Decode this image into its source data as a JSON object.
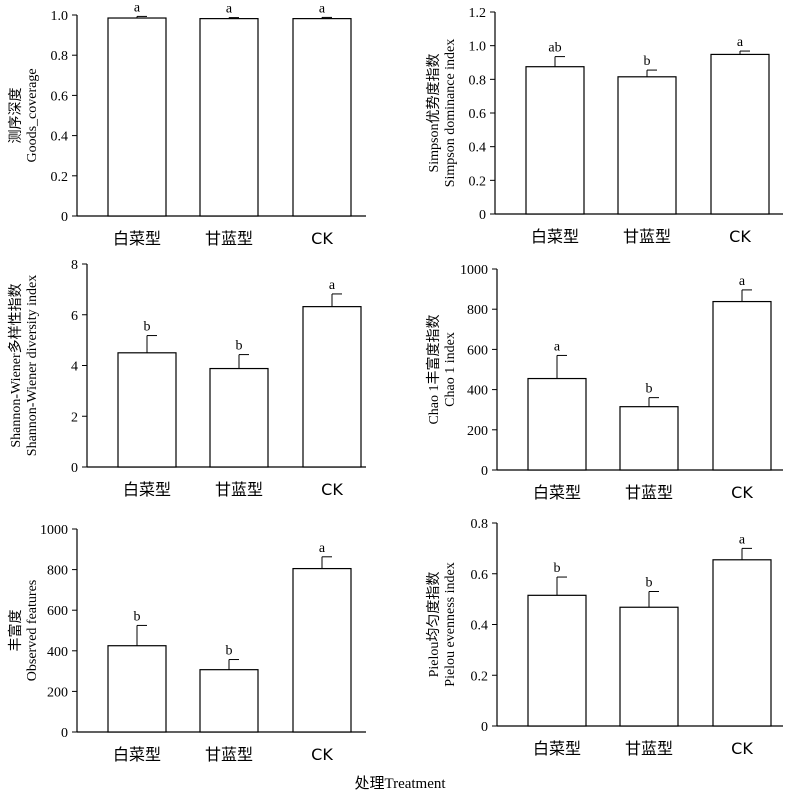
{
  "figure": {
    "xlabel": "处理Treatment"
  },
  "chart_data": [
    {
      "type": "bar",
      "categories": [
        "白菜型",
        "甘蓝型",
        "CK"
      ],
      "values": [
        0.985,
        0.982,
        0.982
      ],
      "errors": [
        0.008,
        0.005,
        0.006
      ],
      "letters": [
        "a",
        "a",
        "a"
      ],
      "ylabel": [
        "测序深度",
        "Goods_coverage"
      ],
      "ylim": [
        0,
        1.0
      ],
      "yticks": [
        0,
        0.2,
        0.4,
        0.6,
        0.8,
        1.0
      ],
      "ytick_labels": [
        "0",
        "0.2",
        "0.4",
        "0.6",
        "0.8",
        "1.0"
      ]
    },
    {
      "type": "bar",
      "categories": [
        "白菜型",
        "甘蓝型",
        "CK"
      ],
      "values": [
        0.875,
        0.815,
        0.948
      ],
      "errors": [
        0.06,
        0.04,
        0.02
      ],
      "letters": [
        "ab",
        "b",
        "a"
      ],
      "ylabel": [
        "Simpson优势度指数",
        "Simpson dominance index"
      ],
      "ylim": [
        0,
        1.2
      ],
      "yticks": [
        0,
        0.2,
        0.4,
        0.6,
        0.8,
        1.0,
        1.2
      ],
      "ytick_labels": [
        "0",
        "0.2",
        "0.4",
        "0.6",
        "0.8",
        "1.0",
        "1.2"
      ]
    },
    {
      "type": "bar",
      "categories": [
        "白菜型",
        "甘蓝型",
        "CK"
      ],
      "values": [
        4.5,
        3.88,
        6.32
      ],
      "errors": [
        0.68,
        0.55,
        0.5
      ],
      "letters": [
        "b",
        "b",
        "a"
      ],
      "ylabel": [
        "Shannon-Wiener多样性指数",
        "Shannon-Wiener diversity index"
      ],
      "ylim": [
        0,
        8
      ],
      "yticks": [
        0,
        2,
        4,
        6,
        8
      ],
      "ytick_labels": [
        "0",
        "2",
        "4",
        "6",
        "8"
      ]
    },
    {
      "type": "bar",
      "categories": [
        "白菜型",
        "甘蓝型",
        "CK"
      ],
      "values": [
        455,
        315,
        838
      ],
      "errors": [
        115,
        45,
        58
      ],
      "letters": [
        "a",
        "b",
        "a"
      ],
      "ylabel": [
        "Chao 1丰富度指数",
        "Chao 1 index"
      ],
      "ylim": [
        0,
        1000
      ],
      "yticks": [
        0,
        200,
        400,
        600,
        800,
        1000
      ],
      "ytick_labels": [
        "0",
        "200",
        "400",
        "600",
        "800",
        "1000"
      ]
    },
    {
      "type": "bar",
      "categories": [
        "白菜型",
        "甘蓝型",
        "CK"
      ],
      "values": [
        425,
        307,
        805
      ],
      "errors": [
        100,
        50,
        58
      ],
      "letters": [
        "b",
        "b",
        "a"
      ],
      "ylabel": [
        "丰富度",
        "Observed features"
      ],
      "ylim": [
        0,
        1000
      ],
      "yticks": [
        0,
        200,
        400,
        600,
        800,
        1000
      ],
      "ytick_labels": [
        "0",
        "200",
        "400",
        "600",
        "800",
        "1000"
      ]
    },
    {
      "type": "bar",
      "categories": [
        "白菜型",
        "甘蓝型",
        "CK"
      ],
      "values": [
        0.515,
        0.468,
        0.655
      ],
      "errors": [
        0.072,
        0.062,
        0.045
      ],
      "letters": [
        "b",
        "b",
        "a"
      ],
      "ylabel": [
        "Pielou均匀度指数",
        "Pielou evenness index"
      ],
      "ylim": [
        0,
        0.8
      ],
      "yticks": [
        0,
        0.2,
        0.4,
        0.6,
        0.8
      ],
      "ytick_labels": [
        "0",
        "0.2",
        "0.4",
        "0.6",
        "0.8"
      ]
    }
  ]
}
